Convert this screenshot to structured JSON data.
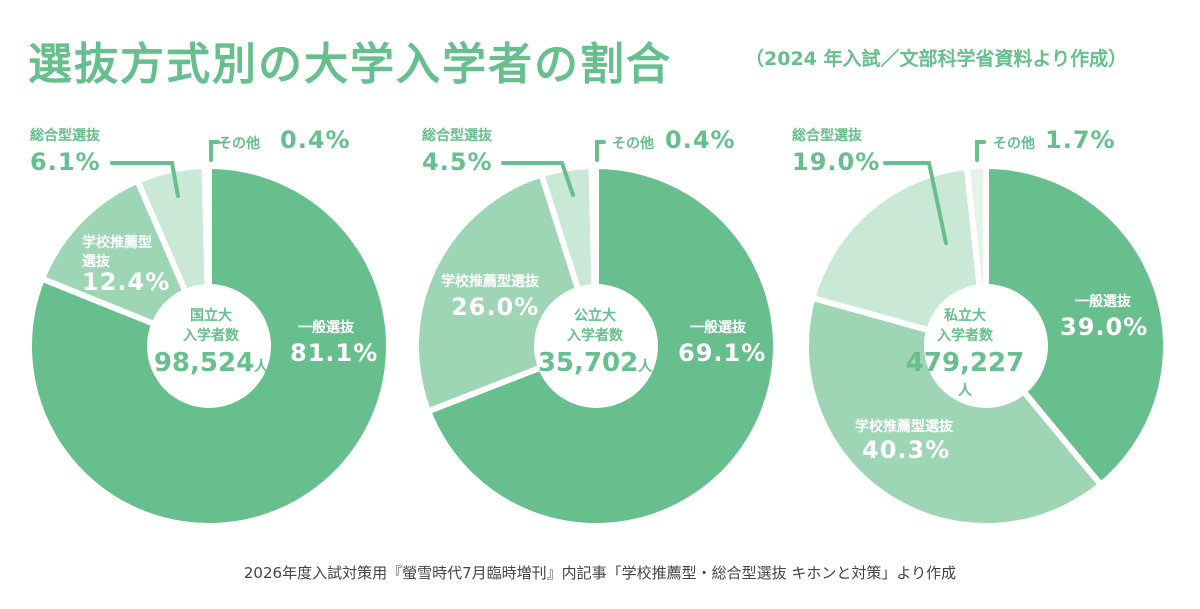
{
  "title": "選抜方式別の大学入学者の割合",
  "subtitle": "（2024 年入試／文部科学省資料より作成）",
  "footer": "2026年度入試対策用『螢雪時代7月臨時増刊』内記事「学校推薦型・総合型選抜 キホンと対策」より作成",
  "colors": {
    "general": "#66BF8C",
    "school": "#9DD5B5",
    "comprehensive": "#C9E8D6",
    "other": "#E3F3EA",
    "text": "#66BF8C"
  },
  "chart_data": [
    {
      "type": "pie",
      "center_label_1": "国立大",
      "center_label_2": "入学者数",
      "total": "98,524",
      "unit": "人",
      "slices": [
        {
          "name": "一般選抜",
          "value": 81.1,
          "label": "81.1%"
        },
        {
          "name": "学校推薦型選抜",
          "label_line1": "学校推薦型",
          "label_line2": "選抜",
          "value": 12.4,
          "label": "12.4%"
        },
        {
          "name": "総合型選抜",
          "value": 6.1,
          "label": "6.1%"
        },
        {
          "name": "その他",
          "value": 0.4,
          "label": "0.4%"
        }
      ]
    },
    {
      "type": "pie",
      "center_label_1": "公立大",
      "center_label_2": "入学者数",
      "total": "35,702",
      "unit": "人",
      "slices": [
        {
          "name": "一般選抜",
          "value": 69.1,
          "label": "69.1%"
        },
        {
          "name": "学校推薦型選抜",
          "value": 26.0,
          "label": "26.0%"
        },
        {
          "name": "総合型選抜",
          "value": 4.5,
          "label": "4.5%"
        },
        {
          "name": "その他",
          "value": 0.4,
          "label": "0.4%"
        }
      ]
    },
    {
      "type": "pie",
      "center_label_1": "私立大",
      "center_label_2": "入学者数",
      "total": "479,227",
      "unit": "人",
      "slices": [
        {
          "name": "一般選抜",
          "value": 39.0,
          "label": "39.0%"
        },
        {
          "name": "学校推薦型選抜",
          "value": 40.3,
          "label": "40.3%"
        },
        {
          "name": "総合型選抜",
          "value": 19.0,
          "label": "19.0%"
        },
        {
          "name": "その他",
          "value": 1.7,
          "label": "1.7%"
        }
      ]
    }
  ]
}
